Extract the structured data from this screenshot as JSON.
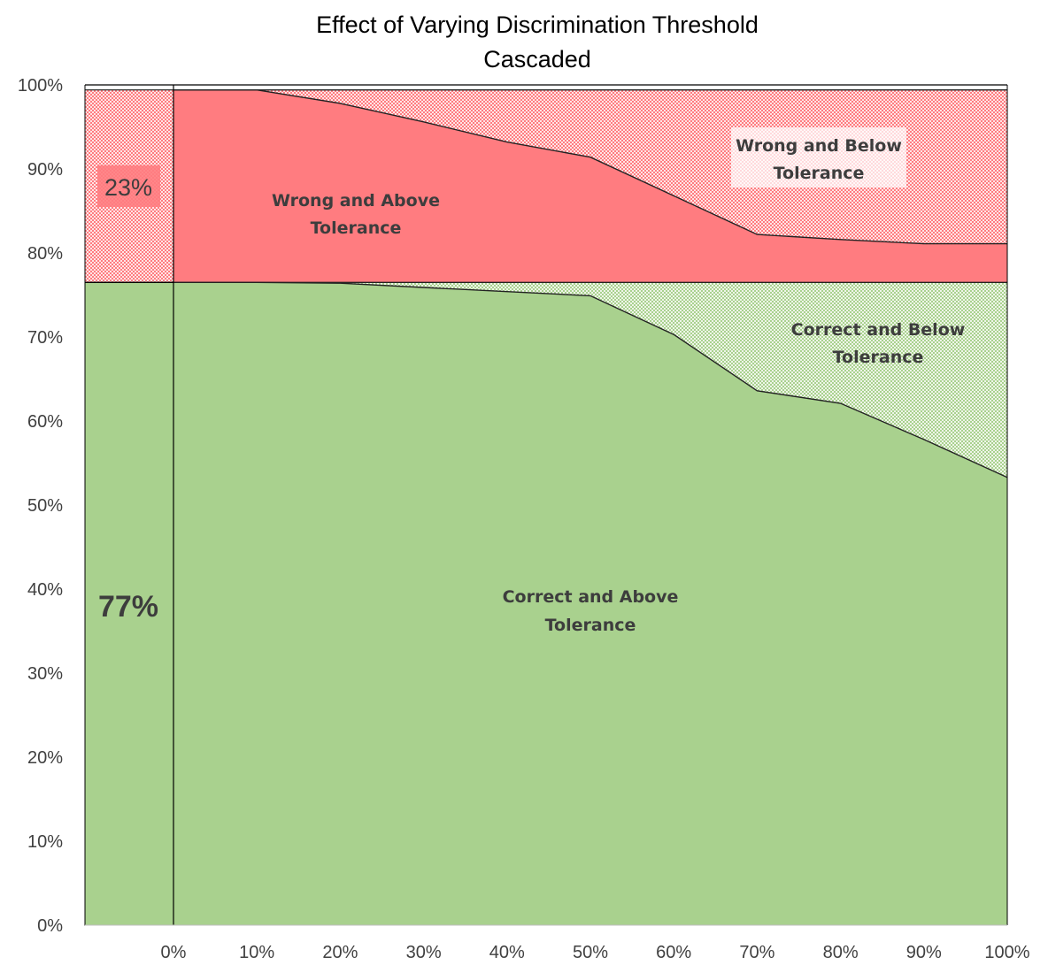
{
  "chart_data": {
    "type": "area",
    "title": "Effect of Varying Discrimination Threshold",
    "subtitle": "Cascaded",
    "xlabel": "",
    "ylabel": "",
    "x": [
      0,
      10,
      20,
      30,
      40,
      50,
      60,
      70,
      80,
      90,
      100
    ],
    "x_tick_labels": [
      "0%",
      "10%",
      "20%",
      "30%",
      "40%",
      "50%",
      "60%",
      "70%",
      "80%",
      "90%",
      "100%"
    ],
    "y_tick_labels": [
      "0%",
      "10%",
      "20%",
      "30%",
      "40%",
      "50%",
      "60%",
      "70%",
      "80%",
      "90%",
      "100%"
    ],
    "ylim": [
      0,
      100
    ],
    "xlim": [
      0,
      100
    ],
    "grid": false,
    "stacked": true,
    "series": [
      {
        "name": "Correct and Above Tolerance",
        "values": [
          76.5,
          76.5,
          76.4,
          75.9,
          75.4,
          74.9,
          70.3,
          63.6,
          62.1,
          57.8,
          53.3
        ],
        "color": "#a9d18e",
        "pattern": false
      },
      {
        "name": "Correct and Below Tolerance",
        "values": [
          0.0,
          0.0,
          0.1,
          0.6,
          1.1,
          1.6,
          6.2,
          12.9,
          14.4,
          18.7,
          23.2
        ],
        "color": "#a9d18e",
        "pattern": true
      },
      {
        "name": "Wrong and Above Tolerance",
        "values": [
          22.9,
          22.9,
          21.3,
          19.1,
          16.7,
          14.9,
          10.3,
          5.7,
          5.1,
          4.6,
          4.6
        ],
        "color": "#ff7c80",
        "pattern": false
      },
      {
        "name": "Wrong and Below Tolerance",
        "values": [
          0.0,
          0.0,
          1.6,
          3.8,
          6.2,
          8.0,
          12.6,
          17.2,
          17.8,
          18.3,
          18.3
        ],
        "color": "#ff7c80",
        "pattern": true
      }
    ],
    "reference_bar": {
      "correct_value": 76.5,
      "wrong_value": 22.9,
      "correct_label": "77%",
      "wrong_label": "23%"
    },
    "region_labels": {
      "wrong_above": [
        "Wrong and Above",
        "Tolerance"
      ],
      "wrong_below": [
        "Wrong and Below",
        "Tolerance"
      ],
      "correct_below": [
        "Correct and Below",
        "Tolerance"
      ],
      "correct_above": [
        "Correct and Above",
        "Tolerance"
      ]
    }
  }
}
